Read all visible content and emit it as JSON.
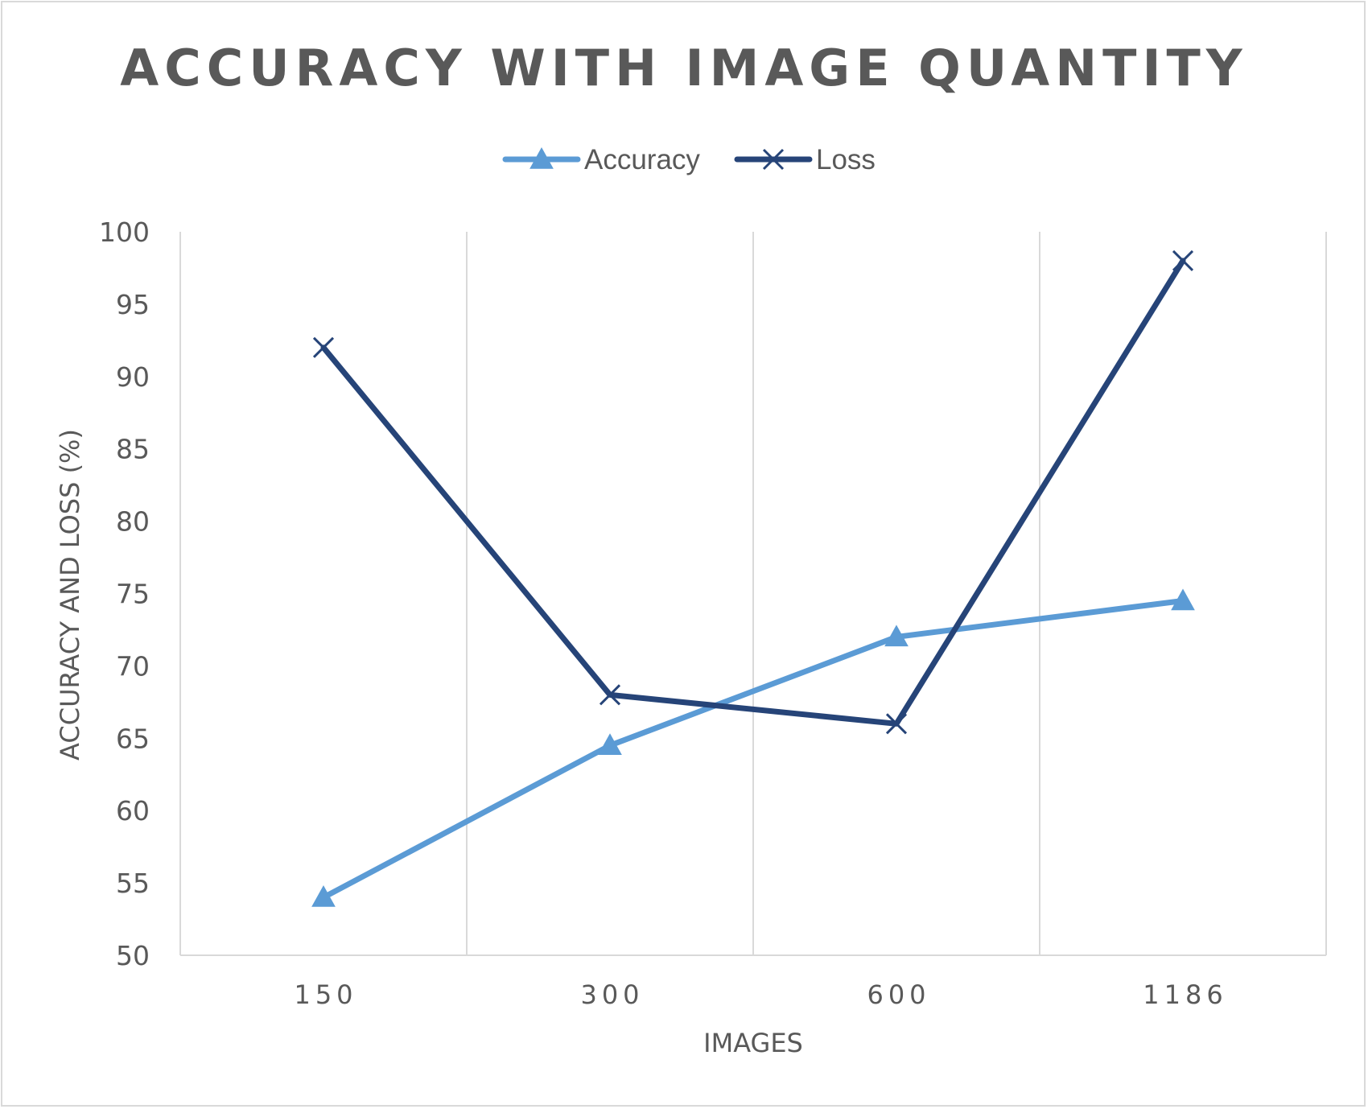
{
  "chart_data": {
    "type": "line",
    "title": "ACCURACY WITH IMAGE QUANTITY",
    "xlabel": "IMAGES",
    "ylabel": "ACCURACY AND LOSS (%)",
    "categories": [
      "150",
      "300",
      "600",
      "1186"
    ],
    "ylim": [
      50,
      100
    ],
    "yticks": [
      50,
      55,
      60,
      65,
      70,
      75,
      80,
      85,
      90,
      95,
      100
    ],
    "grid": "vertical",
    "legend_position": "top",
    "series": [
      {
        "name": "Accuracy",
        "values": [
          54,
          64.5,
          72,
          74.5
        ],
        "color": "#5b9bd5",
        "marker": "triangle"
      },
      {
        "name": "Loss",
        "values": [
          92,
          68,
          66,
          98
        ],
        "color": "#264478",
        "marker": "x"
      }
    ]
  }
}
